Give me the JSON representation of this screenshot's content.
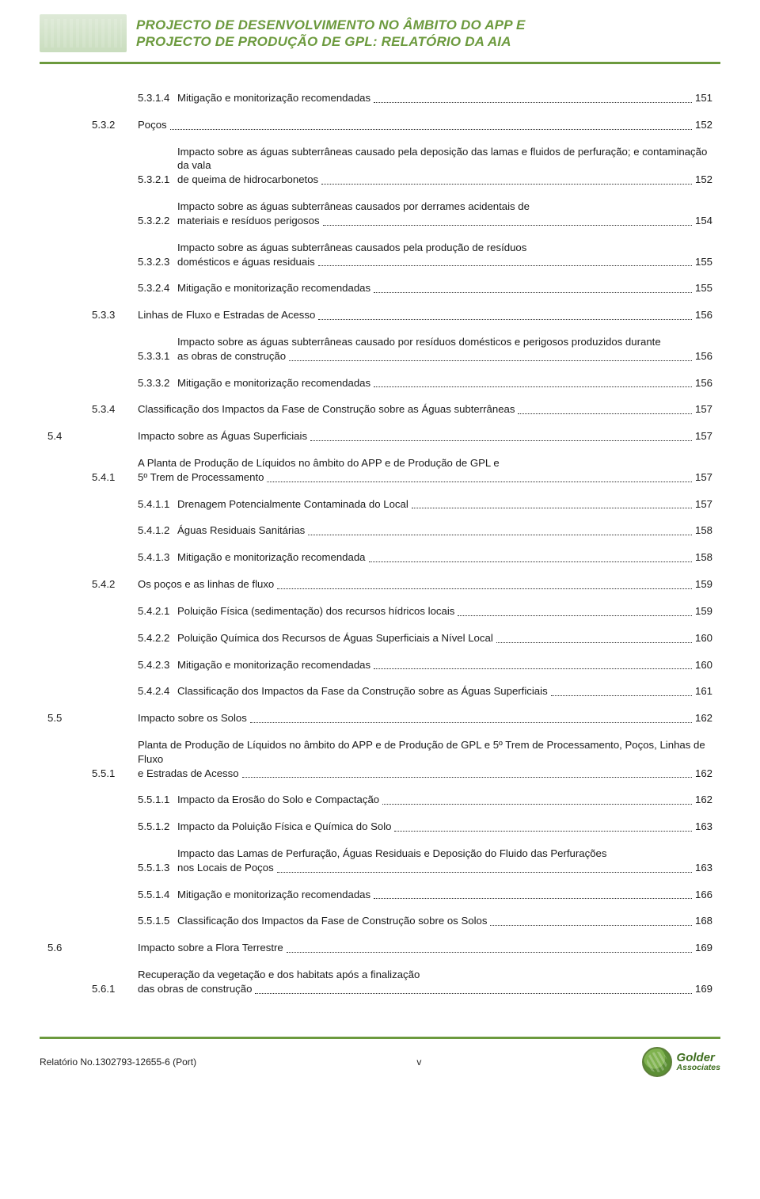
{
  "header": {
    "title_line1": "PROJECTO DE DESENVOLVIMENTO NO ÂMBITO DO APP E",
    "title_line2": "PROJECTO DE PRODUÇÃO DE GPL: RELATÓRIO DA AIA"
  },
  "footer": {
    "report_no": "Relatório No.1302793-12655-6 (Port)",
    "page_label": "v",
    "brand_top": "Golder",
    "brand_bottom": "Associates"
  },
  "indent": {
    "l1": 0,
    "l2": 56,
    "l3": 114,
    "l4": 114
  },
  "style": {
    "accent": "#6c9a3e",
    "text": "#1a1a1a",
    "fontsize_body": 13.2,
    "fontsize_header": 17,
    "fontsize_footer": 12,
    "leader_color": "#2a2a2a"
  },
  "toc": [
    {
      "num": "5.3.1.4",
      "text": "Mitigação e monitorização recomendadas",
      "page": "151",
      "indent": "l3"
    },
    {
      "num": "5.3.2",
      "text": "Poços",
      "page": "152",
      "indent": "l2",
      "gap_before": true
    },
    {
      "num": "5.3.2.1",
      "text": "Impacto sobre as águas subterrâneas causado pela deposição das lamas e fluidos de perfuração; e contaminação da vala de queima de hidrocarbonetos",
      "page": "152",
      "indent": "l3",
      "gap_before": true
    },
    {
      "num": "5.3.2.2",
      "text": "Impacto sobre as águas subterrâneas causados por derrames acidentais de materiais e resíduos perigosos",
      "page": "154",
      "indent": "l3",
      "gap_before": true
    },
    {
      "num": "5.3.2.3",
      "text": "Impacto sobre as águas subterrâneas causados pela produção de resíduos domésticos e águas residuais",
      "page": "155",
      "indent": "l3",
      "gap_before": true
    },
    {
      "num": "5.3.2.4",
      "text": "Mitigação e monitorização recomendadas",
      "page": "155",
      "indent": "l3",
      "gap_before": true
    },
    {
      "num": "5.3.3",
      "text": "Linhas de Fluxo e Estradas de Acesso",
      "page": "156",
      "indent": "l2",
      "gap_before": true
    },
    {
      "num": "5.3.3.1",
      "text": "Impacto sobre as águas subterrâneas causado por resíduos domésticos e perigosos produzidos durante as obras de construção",
      "page": "156",
      "indent": "l3",
      "gap_before": true
    },
    {
      "num": "5.3.3.2",
      "text": "Mitigação e monitorização recomendadas",
      "page": "156",
      "indent": "l3",
      "gap_before": true
    },
    {
      "num": "5.3.4",
      "text": "Classificação dos Impactos da Fase de Construção sobre as Águas subterrâneas",
      "page": "157",
      "indent": "l2",
      "gap_before": true
    },
    {
      "num": "5.4",
      "text": "Impacto sobre as Águas Superficiais",
      "page": "157",
      "indent": "l1",
      "gap_before": true
    },
    {
      "num": "5.4.1",
      "text": "A Planta de Produção de Líquidos no âmbito do APP e de Produção de GPL e 5º Trem de Processamento",
      "page": "157",
      "indent": "l2",
      "gap_before": true
    },
    {
      "num": "5.4.1.1",
      "text": "Drenagem Potencialmente Contaminada do Local",
      "page": "157",
      "indent": "l3",
      "gap_before": true
    },
    {
      "num": "5.4.1.2",
      "text": "Águas Residuais Sanitárias",
      "page": "158",
      "indent": "l3",
      "gap_before": true
    },
    {
      "num": "5.4.1.3",
      "text": "Mitigação e monitorização recomendada",
      "page": "158",
      "indent": "l3",
      "gap_before": true
    },
    {
      "num": "5.4.2",
      "text": "Os poços e as linhas de fluxo",
      "page": "159",
      "indent": "l2",
      "gap_before": true
    },
    {
      "num": "5.4.2.1",
      "text": "Poluição Física (sedimentação) dos recursos hídricos locais",
      "page": "159",
      "indent": "l3",
      "gap_before": true
    },
    {
      "num": "5.4.2.2",
      "text": "Poluição Química dos Recursos de Águas Superficiais a Nível Local",
      "page": "160",
      "indent": "l3",
      "gap_before": true
    },
    {
      "num": "5.4.2.3",
      "text": "Mitigação e monitorização recomendadas",
      "page": "160",
      "indent": "l3",
      "gap_before": true
    },
    {
      "num": "5.4.2.4",
      "text": "Classificação dos Impactos da Fase da Construção sobre as Águas Superficiais",
      "page": "161",
      "indent": "l3",
      "gap_before": true
    },
    {
      "num": "5.5",
      "text": "Impacto sobre os Solos",
      "page": "162",
      "indent": "l1",
      "gap_before": true
    },
    {
      "num": "5.5.1",
      "text": "Planta de Produção de Líquidos no âmbito do APP e de Produção de GPL e 5º Trem de Processamento, Poços, Linhas de Fluxo e Estradas de Acesso",
      "page": "162",
      "indent": "l2",
      "gap_before": true
    },
    {
      "num": "5.5.1.1",
      "text": "Impacto da Erosão do Solo e Compactação",
      "page": "162",
      "indent": "l3",
      "gap_before": true
    },
    {
      "num": "5.5.1.2",
      "text": "Impacto da Poluição Física e Química do Solo",
      "page": "163",
      "indent": "l3",
      "gap_before": true
    },
    {
      "num": "5.5.1.3",
      "text": "Impacto das Lamas de Perfuração, Águas Residuais e Deposição do Fluido das Perfurações nos Locais de Poços",
      "page": "163",
      "indent": "l3",
      "gap_before": true
    },
    {
      "num": "5.5.1.4",
      "text": "Mitigação e monitorização recomendadas",
      "page": "166",
      "indent": "l3",
      "gap_before": true
    },
    {
      "num": "5.5.1.5",
      "text": "Classificação dos Impactos da Fase de Construção sobre os Solos",
      "page": "168",
      "indent": "l3",
      "gap_before": true
    },
    {
      "num": "5.6",
      "text": "Impacto sobre a Flora Terrestre",
      "page": "169",
      "indent": "l1",
      "gap_before": true
    },
    {
      "num": "5.6.1",
      "text": "Recuperação da vegetação e dos habitats após a finalização das obras de construção",
      "page": "169",
      "indent": "l2",
      "gap_before": true
    }
  ]
}
